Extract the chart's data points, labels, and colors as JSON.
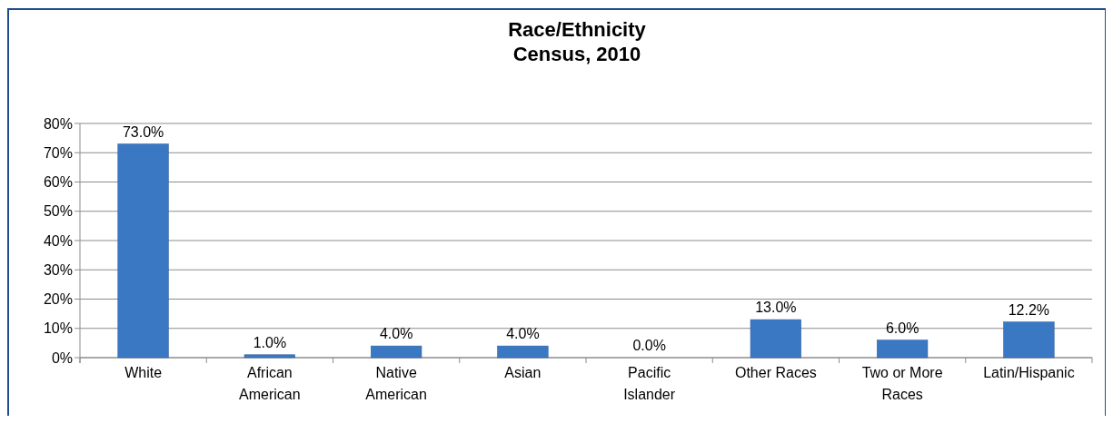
{
  "chart_data": {
    "type": "bar",
    "title": "Race/Ethnicity\nCensus, 2010",
    "categories": [
      "White",
      "African American",
      "Native American",
      "Asian",
      "Pacific Islander",
      "Other Races",
      "Two or More Races",
      "Latin/Hispanic"
    ],
    "values": [
      73.0,
      1.0,
      4.0,
      4.0,
      0.0,
      13.0,
      6.0,
      12.2
    ],
    "value_labels": [
      "73.0%",
      "1.0%",
      "4.0%",
      "4.0%",
      "0.0%",
      "13.0%",
      "6.0%",
      "12.2%"
    ],
    "color": "#3b78c4",
    "ylim": [
      0,
      80
    ],
    "yticks": [
      {
        "value": 0,
        "label": "0%"
      },
      {
        "value": 10,
        "label": "10%"
      },
      {
        "value": 20,
        "label": "20%"
      },
      {
        "value": 30,
        "label": "30%"
      },
      {
        "value": 40,
        "label": "40%"
      },
      {
        "value": 50,
        "label": "50%"
      },
      {
        "value": 60,
        "label": "60%"
      },
      {
        "value": 70,
        "label": "70%"
      },
      {
        "value": 80,
        "label": "80%"
      }
    ],
    "grid": "y"
  }
}
